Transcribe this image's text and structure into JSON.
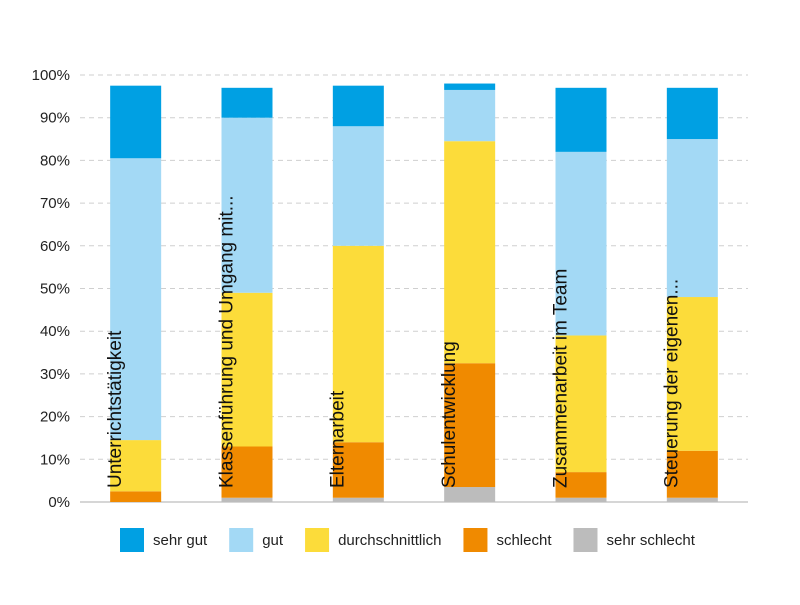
{
  "chart_data": {
    "type": "bar",
    "stacked": true,
    "orientation": "vertical",
    "title": "",
    "xlabel": "",
    "ylabel": "",
    "ylim": [
      0,
      100
    ],
    "y_ticks": [
      "0%",
      "10%",
      "20%",
      "30%",
      "40%",
      "50%",
      "60%",
      "70%",
      "80%",
      "90%",
      "100%"
    ],
    "grid": "horizontal dashed",
    "legend_position": "bottom",
    "categories": [
      "Unterrichtstätigkeit",
      "Klassenführung und Umgang mit...",
      "Elternarbeit",
      "Schulentwicklung",
      "Zusammenarbeit im Team",
      "Steuerung der eigenen..."
    ],
    "series": [
      {
        "name": "sehr schlecht",
        "color": "#bcbcbc",
        "values": [
          0,
          1,
          1,
          3.5,
          1,
          1
        ]
      },
      {
        "name": "schlecht",
        "color": "#f08a00",
        "values": [
          2.5,
          12,
          13,
          29,
          6,
          11
        ]
      },
      {
        "name": "durchschnittlich",
        "color": "#fcdc3a",
        "values": [
          12,
          36,
          46,
          52,
          32,
          36
        ]
      },
      {
        "name": "gut",
        "color": "#a3d9f5",
        "values": [
          66,
          41,
          28,
          12,
          43,
          37
        ]
      },
      {
        "name": "sehr gut",
        "color": "#00a0e3",
        "values": [
          17,
          7,
          9.5,
          1.5,
          15,
          12
        ]
      }
    ]
  }
}
